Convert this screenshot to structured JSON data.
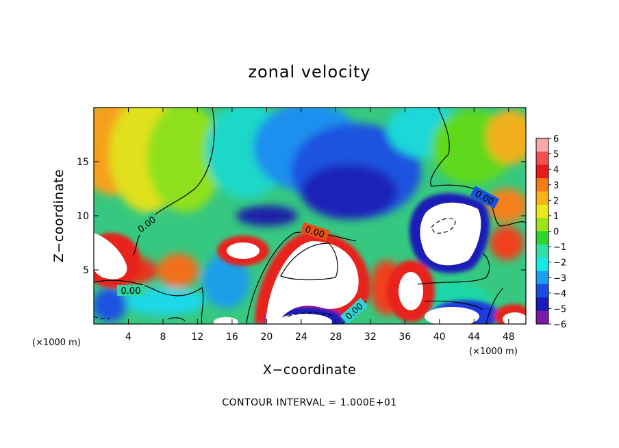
{
  "chart_data": {
    "type": "heatmap",
    "title": "zonal velocity",
    "xlabel": "X−coordinate",
    "ylabel": "Z−coordinate",
    "x_unit_label": "(×1000 m)",
    "z_unit_label": "(×1000 m)",
    "xlim": [
      0,
      50
    ],
    "ylim": [
      0,
      20
    ],
    "x_ticks": [
      4,
      8,
      12,
      16,
      20,
      24,
      28,
      32,
      36,
      40,
      44,
      48
    ],
    "y_ticks": [
      5,
      10,
      15
    ],
    "contour_interval_text": "CONTOUR INTERVAL = 1.000E+01",
    "contour_labels": [
      "0.00",
      "0.00",
      "0.00",
      "0.00",
      "0.00"
    ],
    "colorbar": {
      "levels": [
        6,
        5,
        4,
        3,
        2,
        1,
        0,
        -1,
        -2,
        -3,
        -4,
        -5,
        -6
      ],
      "tick_labels": [
        "6",
        "5",
        "4",
        "3",
        "2",
        "1",
        "0",
        "−1",
        "−2",
        "−3",
        "−4",
        "−5",
        "−6"
      ],
      "colors": [
        "#f7a8a8",
        "#f24f4f",
        "#e81a1a",
        "#f57a1a",
        "#f5b21a",
        "#e8e81a",
        "#9ee21a",
        "#2fd42f",
        "#2fe0a8",
        "#1ae8e8",
        "#1a9eee",
        "#1a4ee0",
        "#1a1ab8",
        "#7a1aa8"
      ],
      "above_max_color": "#ffffff"
    },
    "grid": false
  }
}
